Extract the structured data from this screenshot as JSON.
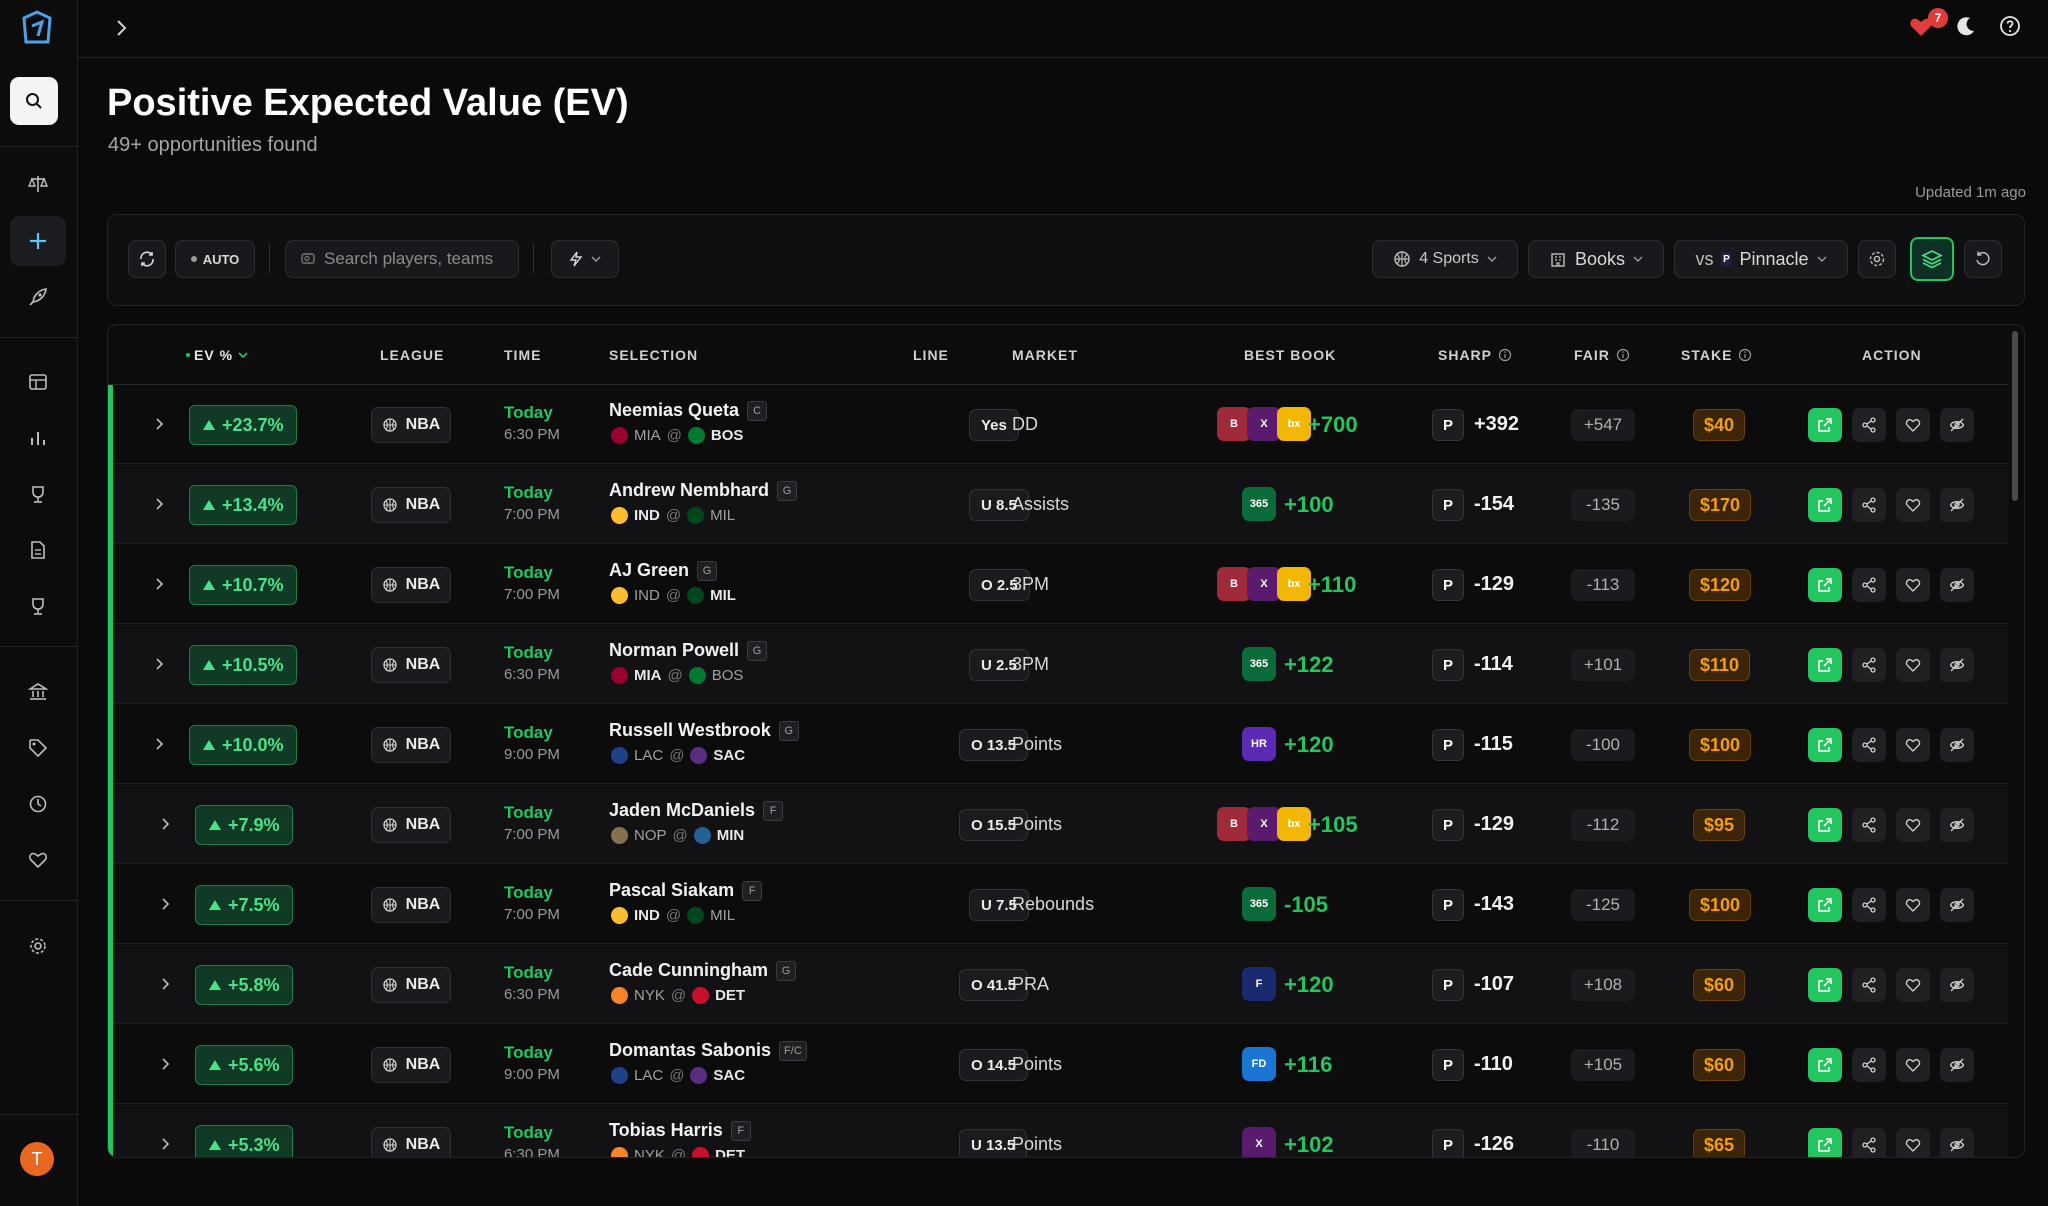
{
  "page": {
    "title": "Positive Expected Value (EV)",
    "subtitle": "49+ opportunities found",
    "updated": "Updated 1m ago"
  },
  "topbar": {
    "notification_count": "7"
  },
  "user": {
    "initial": "T"
  },
  "toolbar": {
    "auto_label": "AUTO",
    "search_placeholder": "Search players, teams",
    "sports_label": "4 Sports",
    "books_label": "Books",
    "vs_label": "vs",
    "sharp_book": "Pinnacle"
  },
  "table": {
    "headers": {
      "ev": "EV %",
      "league": "LEAGUE",
      "time": "TIME",
      "selection": "SELECTION",
      "line": "LINE",
      "market": "MARKET",
      "best_book": "BEST BOOK",
      "sharp": "SHARP",
      "fair": "FAIR",
      "stake": "STAKE",
      "action": "ACTION"
    },
    "rows": [
      {
        "ev": "+23.7%",
        "league": "NBA",
        "day": "Today",
        "time": "6:30 PM",
        "player": "Neemias Queta",
        "pos": "C",
        "away": "MIA",
        "home": "BOS",
        "bold": "home",
        "line": "Yes",
        "market": "DD",
        "books": [
          "bet-rivers",
          "kalshi",
          "betparx"
        ],
        "best": "+700",
        "sharp": "+392",
        "fair": "+547",
        "stake": "$40"
      },
      {
        "ev": "+13.4%",
        "league": "NBA",
        "day": "Today",
        "time": "7:00 PM",
        "player": "Andrew Nembhard",
        "pos": "G",
        "away": "IND",
        "home": "MIL",
        "bold": "away",
        "line": "U 8.5",
        "market": "Assists",
        "books": [
          "bet365"
        ],
        "best": "+100",
        "sharp": "-154",
        "fair": "-135",
        "stake": "$170"
      },
      {
        "ev": "+10.7%",
        "league": "NBA",
        "day": "Today",
        "time": "7:00 PM",
        "player": "AJ Green",
        "pos": "G",
        "away": "IND",
        "home": "MIL",
        "bold": "home",
        "line": "O 2.5",
        "market": "3PM",
        "books": [
          "bet-rivers",
          "kalshi",
          "betparx"
        ],
        "best": "+110",
        "sharp": "-129",
        "fair": "-113",
        "stake": "$120"
      },
      {
        "ev": "+10.5%",
        "league": "NBA",
        "day": "Today",
        "time": "6:30 PM",
        "player": "Norman Powell",
        "pos": "G",
        "away": "MIA",
        "home": "BOS",
        "bold": "away",
        "line": "U 2.5",
        "market": "3PM",
        "books": [
          "bet365"
        ],
        "best": "+122",
        "sharp": "-114",
        "fair": "+101",
        "stake": "$110"
      },
      {
        "ev": "+10.0%",
        "league": "NBA",
        "day": "Today",
        "time": "9:00 PM",
        "player": "Russell Westbrook",
        "pos": "G",
        "away": "LAC",
        "home": "SAC",
        "bold": "home",
        "line": "O 13.5",
        "market": "Points",
        "books": [
          "hard-rock"
        ],
        "best": "+120",
        "sharp": "-115",
        "fair": "-100",
        "stake": "$100"
      },
      {
        "ev": "+7.9%",
        "league": "NBA",
        "day": "Today",
        "time": "7:00 PM",
        "player": "Jaden McDaniels",
        "pos": "F",
        "away": "NOP",
        "home": "MIN",
        "bold": "home",
        "line": "O 15.5",
        "market": "Points",
        "books": [
          "bet-rivers",
          "kalshi",
          "betparx"
        ],
        "best": "+105",
        "sharp": "-129",
        "fair": "-112",
        "stake": "$95"
      },
      {
        "ev": "+7.5%",
        "league": "NBA",
        "day": "Today",
        "time": "7:00 PM",
        "player": "Pascal Siakam",
        "pos": "F",
        "away": "IND",
        "home": "MIL",
        "bold": "away",
        "line": "U 7.5",
        "market": "Rebounds",
        "books": [
          "bet365"
        ],
        "best": "-105",
        "sharp": "-143",
        "fair": "-125",
        "stake": "$100"
      },
      {
        "ev": "+5.8%",
        "league": "NBA",
        "day": "Today",
        "time": "6:30 PM",
        "player": "Cade Cunningham",
        "pos": "G",
        "away": "NYK",
        "home": "DET",
        "bold": "home",
        "line": "O 41.5",
        "market": "PRA",
        "books": [
          "fanatics"
        ],
        "best": "+120",
        "sharp": "-107",
        "fair": "+108",
        "stake": "$60"
      },
      {
        "ev": "+5.6%",
        "league": "NBA",
        "day": "Today",
        "time": "9:00 PM",
        "player": "Domantas Sabonis",
        "pos": "F/C",
        "away": "LAC",
        "home": "SAC",
        "bold": "home",
        "line": "O 14.5",
        "market": "Points",
        "books": [
          "fanduel"
        ],
        "best": "+116",
        "sharp": "-110",
        "fair": "+105",
        "stake": "$60"
      },
      {
        "ev": "+5.3%",
        "league": "NBA",
        "day": "Today",
        "time": "6:30 PM",
        "player": "Tobias Harris",
        "pos": "F",
        "away": "NYK",
        "home": "DET",
        "bold": "home",
        "line": "U 13.5",
        "market": "Points",
        "books": [
          "kalshi"
        ],
        "best": "+102",
        "sharp": "-126",
        "fair": "-110",
        "stake": "$65"
      }
    ]
  },
  "colors": {
    "accent": "#22c55e",
    "stake": "#f59e0b",
    "brand": "#4aa3e8",
    "notification": "#e23b3b"
  },
  "icons": [
    "logo-icon",
    "search-icon",
    "scale-icon",
    "plus-icon",
    "rocket-icon",
    "table-icon",
    "bar-chart-icon",
    "trophy-icon",
    "document-icon",
    "bank-icon",
    "tag-icon",
    "history-icon",
    "heart-icon",
    "gear-icon",
    "chevron-right-icon",
    "moon-icon",
    "help-icon",
    "refresh-icon",
    "bolt-icon",
    "basketball-icon",
    "building-icon",
    "layers-icon",
    "reset-icon",
    "external-link-icon",
    "share-icon",
    "eye-off-icon"
  ]
}
